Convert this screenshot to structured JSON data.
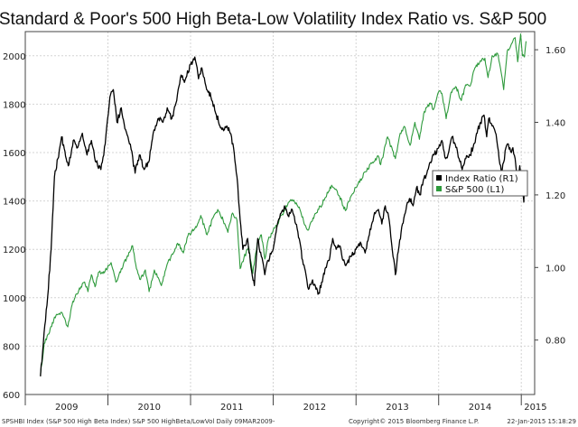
{
  "chart_data": {
    "type": "line",
    "title": "Standard & Poor's 500 High Beta-Low Volatility Index Ratio vs. S&P 500",
    "x_axis": {
      "categories": [
        "2009",
        "2010",
        "2011",
        "2012",
        "2013",
        "2014",
        "2015"
      ],
      "range": [
        "2009-03-09",
        "2015-01-22"
      ]
    },
    "y_left": {
      "ticks": [
        "600",
        "800",
        "1000",
        "1200",
        "1400",
        "1600",
        "1800",
        "2000"
      ],
      "range": [
        600,
        2100
      ]
    },
    "y_right": {
      "ticks": [
        "0.80",
        "1.00",
        "1.20",
        "1.40",
        "1.60"
      ],
      "range": [
        0.65,
        1.65
      ]
    },
    "grid": true,
    "legend_position": "right",
    "series": [
      {
        "name": "Index Ratio (R1)",
        "axis": "right",
        "color": "#000000",
        "points": [
          [
            "2009-03-09",
            0.7
          ],
          [
            "2009-03-25",
            0.82
          ],
          [
            "2009-04-10",
            0.92
          ],
          [
            "2009-04-25",
            1.05
          ],
          [
            "2009-05-10",
            1.25
          ],
          [
            "2009-05-25",
            1.3
          ],
          [
            "2009-06-10",
            1.36
          ],
          [
            "2009-06-25",
            1.32
          ],
          [
            "2009-07-10",
            1.28
          ],
          [
            "2009-08-01",
            1.35
          ],
          [
            "2009-08-20",
            1.33
          ],
          [
            "2009-09-10",
            1.37
          ],
          [
            "2009-10-01",
            1.31
          ],
          [
            "2009-10-20",
            1.35
          ],
          [
            "2009-11-10",
            1.29
          ],
          [
            "2009-12-01",
            1.27
          ],
          [
            "2009-12-20",
            1.34
          ],
          [
            "2010-01-10",
            1.47
          ],
          [
            "2010-01-25",
            1.49
          ],
          [
            "2010-02-10",
            1.4
          ],
          [
            "2010-03-01",
            1.44
          ],
          [
            "2010-03-20",
            1.38
          ],
          [
            "2010-04-10",
            1.34
          ],
          [
            "2010-05-01",
            1.26
          ],
          [
            "2010-05-20",
            1.31
          ],
          [
            "2010-06-10",
            1.27
          ],
          [
            "2010-06-30",
            1.29
          ],
          [
            "2010-07-20",
            1.37
          ],
          [
            "2010-08-10",
            1.41
          ],
          [
            "2010-09-01",
            1.4
          ],
          [
            "2010-09-20",
            1.44
          ],
          [
            "2010-10-10",
            1.41
          ],
          [
            "2010-11-01",
            1.46
          ],
          [
            "2010-11-20",
            1.53
          ],
          [
            "2010-12-05",
            1.51
          ],
          [
            "2011-01-01",
            1.56
          ],
          [
            "2011-01-20",
            1.58
          ],
          [
            "2011-02-05",
            1.52
          ],
          [
            "2011-02-20",
            1.55
          ],
          [
            "2011-03-10",
            1.5
          ],
          [
            "2011-04-01",
            1.47
          ],
          [
            "2011-04-25",
            1.42
          ],
          [
            "2011-05-20",
            1.38
          ],
          [
            "2011-06-10",
            1.39
          ],
          [
            "2011-06-25",
            1.37
          ],
          [
            "2011-07-10",
            1.33
          ],
          [
            "2011-07-25",
            1.25
          ],
          [
            "2011-08-05",
            1.16
          ],
          [
            "2011-08-20",
            1.05
          ],
          [
            "2011-09-10",
            1.08
          ],
          [
            "2011-09-25",
            1.0
          ],
          [
            "2011-10-10",
            0.95
          ],
          [
            "2011-10-25",
            1.08
          ],
          [
            "2011-11-10",
            1.03
          ],
          [
            "2011-11-25",
            0.98
          ],
          [
            "2011-12-10",
            1.02
          ],
          [
            "2012-01-01",
            1.05
          ],
          [
            "2012-01-20",
            1.12
          ],
          [
            "2012-02-05",
            1.15
          ],
          [
            "2012-02-20",
            1.17
          ],
          [
            "2012-03-10",
            1.14
          ],
          [
            "2012-03-25",
            1.16
          ],
          [
            "2012-04-10",
            1.12
          ],
          [
            "2012-04-25",
            1.08
          ],
          [
            "2012-05-10",
            1.02
          ],
          [
            "2012-05-25",
            0.98
          ],
          [
            "2012-06-05",
            0.94
          ],
          [
            "2012-06-20",
            0.96
          ],
          [
            "2012-07-05",
            0.95
          ],
          [
            "2012-07-20",
            0.93
          ],
          [
            "2012-08-05",
            0.96
          ],
          [
            "2012-08-20",
            1.0
          ],
          [
            "2012-09-05",
            1.02
          ],
          [
            "2012-09-20",
            1.08
          ],
          [
            "2012-10-05",
            1.05
          ],
          [
            "2012-10-20",
            1.06
          ],
          [
            "2012-11-05",
            1.02
          ],
          [
            "2012-11-20",
            1.01
          ],
          [
            "2012-12-10",
            1.03
          ],
          [
            "2013-01-01",
            1.05
          ],
          [
            "2013-01-20",
            1.07
          ],
          [
            "2013-02-10",
            1.04
          ],
          [
            "2013-03-01",
            1.09
          ],
          [
            "2013-03-20",
            1.14
          ],
          [
            "2013-04-10",
            1.16
          ],
          [
            "2013-04-25",
            1.12
          ],
          [
            "2013-05-10",
            1.17
          ],
          [
            "2013-05-25",
            1.14
          ],
          [
            "2013-06-10",
            1.05
          ],
          [
            "2013-06-24",
            0.98
          ],
          [
            "2013-07-10",
            1.06
          ],
          [
            "2013-07-25",
            1.12
          ],
          [
            "2013-08-10",
            1.16
          ],
          [
            "2013-08-25",
            1.19
          ],
          [
            "2013-09-10",
            1.17
          ],
          [
            "2013-09-25",
            1.22
          ],
          [
            "2013-10-10",
            1.2
          ],
          [
            "2013-10-25",
            1.24
          ],
          [
            "2013-11-10",
            1.26
          ],
          [
            "2013-11-25",
            1.29
          ],
          [
            "2013-12-10",
            1.31
          ],
          [
            "2014-01-01",
            1.33
          ],
          [
            "2014-01-15",
            1.35
          ],
          [
            "2014-02-01",
            1.3
          ],
          [
            "2014-02-15",
            1.32
          ],
          [
            "2014-03-01",
            1.36
          ],
          [
            "2014-03-15",
            1.34
          ],
          [
            "2014-04-01",
            1.3
          ],
          [
            "2014-04-15",
            1.27
          ],
          [
            "2014-05-01",
            1.3
          ],
          [
            "2014-05-20",
            1.31
          ],
          [
            "2014-06-05",
            1.34
          ],
          [
            "2014-06-20",
            1.37
          ],
          [
            "2014-07-05",
            1.4
          ],
          [
            "2014-07-20",
            1.42
          ],
          [
            "2014-08-01",
            1.36
          ],
          [
            "2014-08-10",
            1.41
          ],
          [
            "2014-08-25",
            1.39
          ],
          [
            "2014-09-05",
            1.38
          ],
          [
            "2014-09-15",
            1.35
          ],
          [
            "2014-09-25",
            1.3
          ],
          [
            "2014-10-05",
            1.26
          ],
          [
            "2014-10-15",
            1.29
          ],
          [
            "2014-10-25",
            1.33
          ],
          [
            "2014-11-05",
            1.34
          ],
          [
            "2014-11-15",
            1.32
          ],
          [
            "2014-11-25",
            1.33
          ],
          [
            "2014-12-05",
            1.3
          ],
          [
            "2014-12-15",
            1.24
          ],
          [
            "2014-12-25",
            1.28
          ],
          [
            "2015-01-05",
            1.22
          ],
          [
            "2015-01-12",
            1.18
          ],
          [
            "2015-01-16",
            1.24
          ],
          [
            "2015-01-22",
            1.23
          ]
        ]
      },
      {
        "name": "S&P 500  (L1)",
        "axis": "left",
        "color": "#2e9a3c",
        "points": [
          [
            "2009-03-09",
            680
          ],
          [
            "2009-03-25",
            810
          ],
          [
            "2009-04-15",
            850
          ],
          [
            "2009-05-10",
            920
          ],
          [
            "2009-06-10",
            940
          ],
          [
            "2009-07-08",
            880
          ],
          [
            "2009-07-30",
            985
          ],
          [
            "2009-08-25",
            1030
          ],
          [
            "2009-09-20",
            1065
          ],
          [
            "2009-10-05",
            1025
          ],
          [
            "2009-10-20",
            1095
          ],
          [
            "2009-11-05",
            1045
          ],
          [
            "2009-11-20",
            1105
          ],
          [
            "2009-12-10",
            1100
          ],
          [
            "2010-01-15",
            1145
          ],
          [
            "2010-02-05",
            1065
          ],
          [
            "2010-03-01",
            1120
          ],
          [
            "2010-03-25",
            1165
          ],
          [
            "2010-04-20",
            1215
          ],
          [
            "2010-05-07",
            1120
          ],
          [
            "2010-05-25",
            1075
          ],
          [
            "2010-06-15",
            1115
          ],
          [
            "2010-07-02",
            1025
          ],
          [
            "2010-07-25",
            1115
          ],
          [
            "2010-08-25",
            1050
          ],
          [
            "2010-09-20",
            1140
          ],
          [
            "2010-10-15",
            1180
          ],
          [
            "2010-11-05",
            1225
          ],
          [
            "2010-11-30",
            1185
          ],
          [
            "2010-12-20",
            1255
          ],
          [
            "2011-01-20",
            1285
          ],
          [
            "2011-02-15",
            1340
          ],
          [
            "2011-03-15",
            1260
          ],
          [
            "2011-04-10",
            1330
          ],
          [
            "2011-05-01",
            1365
          ],
          [
            "2011-05-25",
            1320
          ],
          [
            "2011-06-15",
            1270
          ],
          [
            "2011-07-05",
            1350
          ],
          [
            "2011-07-25",
            1320
          ],
          [
            "2011-08-08",
            1120
          ],
          [
            "2011-08-25",
            1165
          ],
          [
            "2011-09-15",
            1210
          ],
          [
            "2011-10-03",
            1100
          ],
          [
            "2011-10-25",
            1240
          ],
          [
            "2011-11-10",
            1260
          ],
          [
            "2011-11-25",
            1160
          ],
          [
            "2011-12-10",
            1240
          ],
          [
            "2012-01-10",
            1290
          ],
          [
            "2012-02-10",
            1345
          ],
          [
            "2012-03-15",
            1400
          ],
          [
            "2012-04-05",
            1395
          ],
          [
            "2012-04-25",
            1375
          ],
          [
            "2012-05-20",
            1300
          ],
          [
            "2012-06-05",
            1280
          ],
          [
            "2012-06-25",
            1330
          ],
          [
            "2012-07-20",
            1365
          ],
          [
            "2012-08-20",
            1415
          ],
          [
            "2012-09-15",
            1465
          ],
          [
            "2012-10-10",
            1440
          ],
          [
            "2012-11-15",
            1360
          ],
          [
            "2012-12-10",
            1420
          ],
          [
            "2013-01-10",
            1470
          ],
          [
            "2013-02-10",
            1520
          ],
          [
            "2013-03-15",
            1560
          ],
          [
            "2013-04-10",
            1585
          ],
          [
            "2013-04-20",
            1550
          ],
          [
            "2013-05-20",
            1665
          ],
          [
            "2013-06-24",
            1575
          ],
          [
            "2013-07-15",
            1680
          ],
          [
            "2013-08-05",
            1705
          ],
          [
            "2013-08-28",
            1630
          ],
          [
            "2013-09-18",
            1725
          ],
          [
            "2013-10-08",
            1655
          ],
          [
            "2013-10-30",
            1770
          ],
          [
            "2013-11-25",
            1805
          ],
          [
            "2013-12-10",
            1780
          ],
          [
            "2013-12-31",
            1850
          ],
          [
            "2014-01-15",
            1845
          ],
          [
            "2014-02-03",
            1740
          ],
          [
            "2014-02-25",
            1850
          ],
          [
            "2014-03-20",
            1870
          ],
          [
            "2014-04-11",
            1815
          ],
          [
            "2014-04-30",
            1880
          ],
          [
            "2014-05-20",
            1875
          ],
          [
            "2014-06-10",
            1950
          ],
          [
            "2014-07-02",
            1975
          ],
          [
            "2014-07-24",
            1990
          ],
          [
            "2014-08-07",
            1910
          ],
          [
            "2014-08-25",
            2000
          ],
          [
            "2014-09-18",
            2010
          ],
          [
            "2014-10-01",
            1950
          ],
          [
            "2014-10-15",
            1860
          ],
          [
            "2014-10-31",
            2020
          ],
          [
            "2014-11-15",
            2040
          ],
          [
            "2014-11-28",
            2070
          ],
          [
            "2014-12-05",
            2075
          ],
          [
            "2014-12-16",
            1975
          ],
          [
            "2014-12-29",
            2090
          ],
          [
            "2015-01-06",
            2000
          ],
          [
            "2015-01-15",
            1995
          ],
          [
            "2015-01-22",
            2060
          ]
        ]
      }
    ],
    "legend": [
      {
        "label": "Index Ratio (R1)",
        "color": "#000000"
      },
      {
        "label": "S&P 500  (L1)",
        "color": "#2e9a3c"
      }
    ]
  },
  "footer": {
    "source": "SPSHBI Index (S&P 500 High Beta Index) S&P 500 HighBeta/LowVol  Daily 09MAR2009-",
    "copyright": "Copyright© 2015 Bloomberg Finance L.P.",
    "date": "22-Jan-2015 15:18:29"
  }
}
